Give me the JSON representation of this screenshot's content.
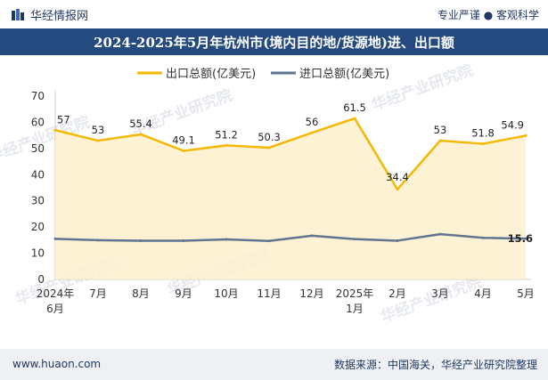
{
  "header": {
    "brand": "华经情报网",
    "slogan": "专业严谨 ● 客观科学"
  },
  "title": "2024-2025年5月年杭州市(境内目的地/货源地)进、出口额",
  "footer": {
    "website": "www.huaon.com",
    "source": "数据来源：中国海关，华经产业研究院整理"
  },
  "watermarks": [
    "华经产业研究院",
    "www.huaon.com"
  ],
  "colors": {
    "export": "#f5b800",
    "export_fill": "#fdf0cc",
    "import": "#5f7590",
    "title_bg": "#244a80",
    "axis": "#cccccc"
  },
  "chart_data": {
    "type": "line",
    "categories": [
      "2024年\n6月",
      "7月",
      "8月",
      "9月",
      "10月",
      "11月",
      "12月",
      "2025年\n1月",
      "2月",
      "3月",
      "4月",
      "5月"
    ],
    "series": [
      {
        "name": "出口总额(亿美元)",
        "values": [
          57,
          53,
          55.4,
          49.1,
          51.2,
          50.3,
          56,
          61.5,
          34.4,
          53,
          51.8,
          54.9
        ],
        "labels": [
          "57",
          "53",
          "55.4",
          "49.1",
          "51.2",
          "50.3",
          "56",
          "61.5",
          "34.4",
          "53",
          "51.8",
          "54.9"
        ],
        "area": true
      },
      {
        "name": "进口总额(亿美元)",
        "values": [
          15.5,
          15.0,
          14.8,
          14.8,
          15.3,
          14.7,
          16.7,
          15.4,
          14.8,
          17.3,
          15.9,
          15.6
        ],
        "labels": [
          "",
          "",
          "",
          "",
          "",
          "",
          "",
          "",
          "",
          "",
          "",
          "15.6"
        ]
      }
    ],
    "ylim": [
      0,
      70
    ],
    "yticks": [
      0,
      10,
      20,
      30,
      40,
      50,
      60,
      70
    ],
    "grid": false,
    "legend": "top-center"
  }
}
